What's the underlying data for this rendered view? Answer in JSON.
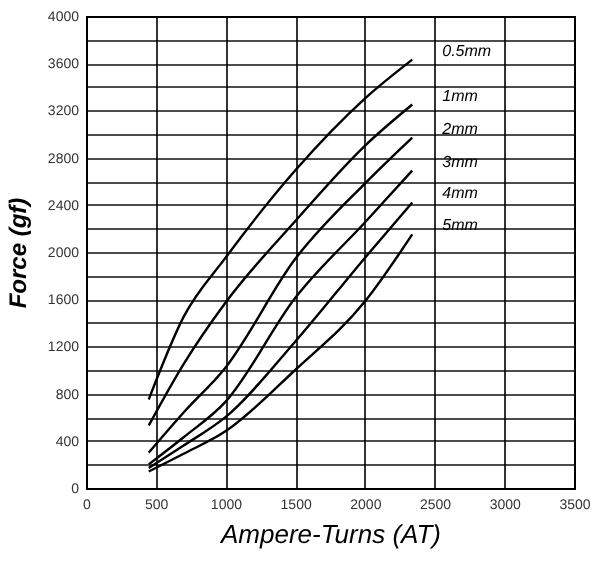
{
  "chart_data": {
    "type": "line",
    "xlabel": "Ampere-Turns (AT)",
    "ylabel": "Force (gf)",
    "xlim": [
      0,
      3500
    ],
    "xticks": [
      0,
      500,
      1000,
      1500,
      2000,
      2500,
      3000,
      3500
    ],
    "ylim": [
      0,
      4000
    ],
    "yticks": [
      0,
      {
        "value": 200,
        "label": null
      },
      400,
      {
        "value": 600,
        "label": null
      },
      800,
      {
        "value": 1000,
        "label": null
      },
      1200,
      {
        "value": 1400,
        "label": null
      },
      1600,
      {
        "value": 1800,
        "label": null
      },
      2000,
      {
        "value": 2200,
        "label": null
      },
      2400,
      {
        "value": 2600,
        "label": null
      },
      2800,
      {
        "value": 3000,
        "label": null
      },
      3200,
      {
        "value": 3400,
        "label": null
      },
      3600,
      {
        "value": 3800,
        "label": null
      },
      4000
    ],
    "grid": true,
    "x": [
      450,
      700,
      1000,
      1500,
      2000,
      2340
    ],
    "series": [
      {
        "name": "0.5mm",
        "color": "#000000",
        "values": [
          750,
          1450,
          1950,
          2690,
          3300,
          3630
        ]
      },
      {
        "name": "1mm",
        "color": "#000000",
        "values": [
          530,
          1050,
          1570,
          2260,
          2900,
          3250
        ]
      },
      {
        "name": "2mm",
        "color": "#000000",
        "values": [
          300,
          640,
          1020,
          1940,
          2580,
          2970
        ]
      },
      {
        "name": "3mm",
        "color": "#000000",
        "values": [
          200,
          430,
          730,
          1610,
          2250,
          2690
        ]
      },
      {
        "name": "4mm",
        "color": "#000000",
        "values": [
          170,
          360,
          600,
          1240,
          1950,
          2420
        ]
      },
      {
        "name": "5mm",
        "color": "#000000",
        "values": [
          140,
          290,
          480,
          1000,
          1580,
          2150
        ]
      }
    ]
  }
}
